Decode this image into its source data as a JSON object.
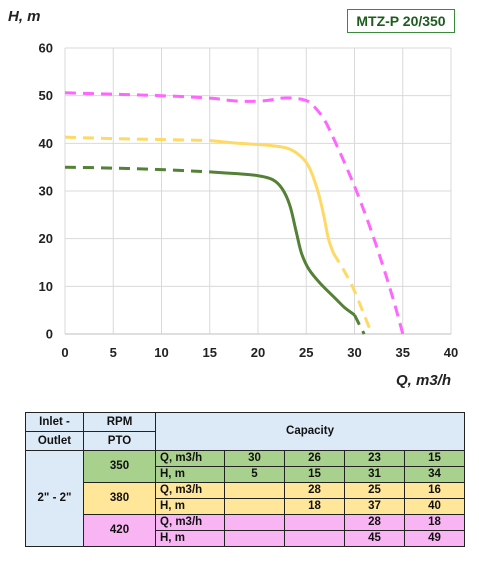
{
  "model": "MTZ-P 20/350",
  "chart_data": {
    "type": "line",
    "xlabel": "Q, m3/h",
    "ylabel": "H, m",
    "xlim": [
      0,
      40
    ],
    "ylim": [
      0,
      60
    ],
    "xticks": [
      0,
      5,
      10,
      15,
      20,
      25,
      30,
      35,
      40
    ],
    "yticks": [
      0,
      10,
      20,
      30,
      40,
      50,
      60
    ],
    "grid": true,
    "series": [
      {
        "color": "#538135",
        "solid": [
          [
            15,
            34
          ],
          [
            18,
            33.6
          ],
          [
            20,
            33.2
          ],
          [
            21.5,
            32.4
          ],
          [
            22.5,
            30.5
          ],
          [
            23.3,
            27
          ],
          [
            23.9,
            22
          ],
          [
            24.5,
            17
          ],
          [
            25.3,
            13.5
          ],
          [
            26.5,
            10.5
          ],
          [
            28,
            7.5
          ],
          [
            29,
            5.5
          ],
          [
            30,
            4
          ]
        ],
        "dashed_start": [
          [
            0,
            35
          ],
          [
            5,
            34.8
          ],
          [
            10,
            34.5
          ],
          [
            15,
            34
          ]
        ],
        "dashed_end": [
          [
            30,
            4
          ],
          [
            30.5,
            2
          ],
          [
            31,
            0
          ]
        ]
      },
      {
        "color": "#ffd966",
        "solid": [
          [
            15,
            40.6
          ],
          [
            18,
            40
          ],
          [
            21,
            39.6
          ],
          [
            23,
            39
          ],
          [
            24.3,
            37.5
          ],
          [
            25.3,
            35
          ],
          [
            26.2,
            30
          ],
          [
            26.8,
            25
          ],
          [
            27.3,
            20
          ],
          [
            27.8,
            17
          ]
        ],
        "dashed_start": [
          [
            0,
            41.3
          ],
          [
            5,
            41
          ],
          [
            10,
            40.8
          ],
          [
            15,
            40.6
          ]
        ],
        "dashed_end": [
          [
            27.8,
            17
          ],
          [
            29,
            13
          ],
          [
            30,
            9
          ],
          [
            31,
            4
          ],
          [
            31.8,
            0
          ]
        ]
      },
      {
        "color": "#ff66ff",
        "solid": [],
        "dashed_start": [
          [
            0,
            50.6
          ],
          [
            5,
            50.3
          ],
          [
            10,
            50
          ],
          [
            15,
            49.5
          ],
          [
            17,
            49
          ],
          [
            19,
            48.8
          ],
          [
            21,
            49
          ],
          [
            22.5,
            49.5
          ],
          [
            24,
            49.4
          ],
          [
            25.2,
            48.8
          ],
          [
            26,
            47.3
          ],
          [
            27,
            44.5
          ],
          [
            28.4,
            38.5
          ],
          [
            30,
            31
          ],
          [
            31.5,
            23
          ],
          [
            33,
            14
          ],
          [
            34.2,
            6
          ],
          [
            35,
            0
          ]
        ],
        "dashed_end": []
      }
    ],
    "table": {
      "header_col1": [
        "Inlet -",
        "Outlet"
      ],
      "header_col2": [
        "RPM",
        "PTO"
      ],
      "header_capacity": "Capacity",
      "inlet_outlet": "2\" - 2\"",
      "rows": [
        {
          "rpm": "350",
          "color": "green",
          "q_label": "Q, m3/h",
          "h_label": "H, m",
          "q": [
            "30",
            "26",
            "23",
            "15"
          ],
          "h": [
            "5",
            "15",
            "31",
            "34"
          ]
        },
        {
          "rpm": "380",
          "color": "yellow",
          "q_label": "Q, m3/h",
          "h_label": "H, m",
          "q": [
            "",
            "28",
            "25",
            "16"
          ],
          "h": [
            "",
            "18",
            "37",
            "40"
          ]
        },
        {
          "rpm": "420",
          "color": "pink",
          "q_label": "Q, m3/h",
          "h_label": "H, m",
          "q": [
            "",
            "",
            "28",
            "18"
          ],
          "h": [
            "",
            "",
            "45",
            "49"
          ]
        }
      ]
    }
  }
}
